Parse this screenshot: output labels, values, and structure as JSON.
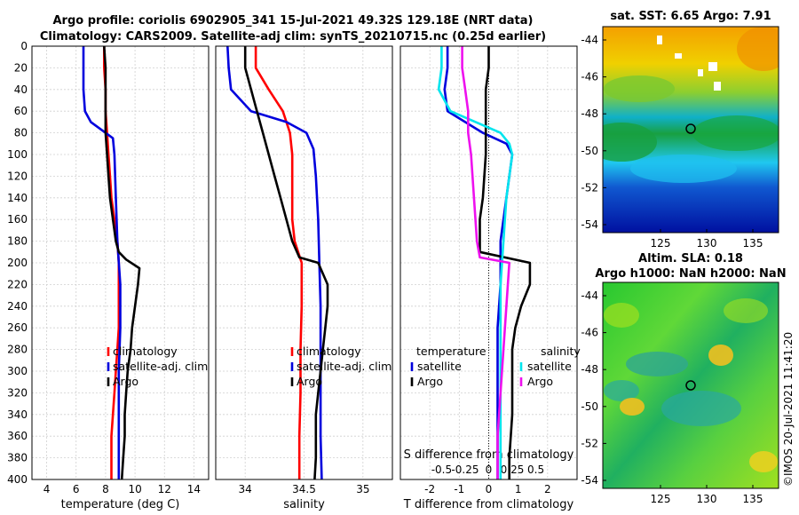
{
  "title_line1": "Argo profile: coriolis 6902905_341 15-Jul-2021 49.32S 129.18E (NRT data)",
  "title_line2": "Climatology: CARS2009. Satellite-adj clim: synTS_20210715.nc (0.25d earlier)",
  "watermark": "©IMOS 20-Jul-2021 11:41:20",
  "colors": {
    "climatology": "#ff0000",
    "satellite": "#0000dd",
    "argo": "#000000",
    "sat_salinity": "#00e5ee",
    "argo_salinity": "#ee11ee"
  },
  "depth_ticks": [
    "0",
    "20",
    "40",
    "60",
    "80",
    "100",
    "120",
    "140",
    "160",
    "180",
    "200",
    "220",
    "240",
    "260",
    "280",
    "300",
    "320",
    "340",
    "360",
    "380",
    "400"
  ],
  "chart_data": [
    {
      "type": "line",
      "name": "temperature",
      "xlabel": "temperature (deg C)",
      "ylabel": "depth",
      "xlim": [
        3,
        15
      ],
      "ylim": [
        400,
        0
      ],
      "xticks": [
        "4",
        "6",
        "8",
        "10",
        "12",
        "14"
      ],
      "xtick_values": [
        4,
        6,
        8,
        10,
        12,
        14
      ],
      "legend": [
        "climatology",
        "satellite-adj. clim",
        "Argo"
      ],
      "series": [
        {
          "name": "climatology",
          "color": "red",
          "points": [
            [
              7.9,
              0
            ],
            [
              7.9,
              20
            ],
            [
              8.0,
              40
            ],
            [
              8.0,
              60
            ],
            [
              8.1,
              80
            ],
            [
              8.2,
              100
            ],
            [
              8.3,
              120
            ],
            [
              8.4,
              140
            ],
            [
              8.6,
              160
            ],
            [
              8.8,
              180
            ],
            [
              8.9,
              200
            ],
            [
              8.9,
              220
            ],
            [
              8.9,
              240
            ],
            [
              8.9,
              260
            ],
            [
              8.8,
              280
            ],
            [
              8.7,
              300
            ],
            [
              8.6,
              320
            ],
            [
              8.5,
              340
            ],
            [
              8.4,
              360
            ],
            [
              8.4,
              380
            ],
            [
              8.4,
              400
            ]
          ]
        },
        {
          "name": "satellite-adj. clim",
          "color": "blue",
          "points": [
            [
              6.5,
              0
            ],
            [
              6.5,
              20
            ],
            [
              6.5,
              40
            ],
            [
              6.6,
              60
            ],
            [
              7.0,
              70
            ],
            [
              8.0,
              80
            ],
            [
              8.5,
              85
            ],
            [
              8.6,
              100
            ],
            [
              8.7,
              140
            ],
            [
              8.8,
              180
            ],
            [
              9.0,
              220
            ],
            [
              9.0,
              260
            ],
            [
              8.9,
              300
            ],
            [
              8.9,
              340
            ],
            [
              8.9,
              380
            ],
            [
              8.9,
              400
            ]
          ]
        },
        {
          "name": "Argo",
          "color": "black",
          "points": [
            [
              7.9,
              0
            ],
            [
              8.0,
              20
            ],
            [
              8.0,
              40
            ],
            [
              8.0,
              60
            ],
            [
              8.0,
              80
            ],
            [
              8.1,
              100
            ],
            [
              8.2,
              120
            ],
            [
              8.3,
              140
            ],
            [
              8.5,
              160
            ],
            [
              8.7,
              180
            ],
            [
              8.9,
              190
            ],
            [
              9.4,
              197
            ],
            [
              10.3,
              205
            ],
            [
              10.2,
              220
            ],
            [
              10.0,
              240
            ],
            [
              9.8,
              260
            ],
            [
              9.7,
              280
            ],
            [
              9.5,
              300
            ],
            [
              9.4,
              320
            ],
            [
              9.3,
              340
            ],
            [
              9.3,
              360
            ],
            [
              9.2,
              380
            ],
            [
              9.1,
              400
            ]
          ]
        }
      ]
    },
    {
      "type": "line",
      "name": "salinity",
      "xlabel": "salinity",
      "ylabel": "depth",
      "xlim": [
        33.75,
        35.25
      ],
      "ylim": [
        400,
        0
      ],
      "xticks": [
        "34",
        "34.5",
        "35"
      ],
      "xtick_values": [
        34,
        34.5,
        35
      ],
      "legend": [
        "climatology",
        "satellite-adj. clim",
        "Argo"
      ],
      "series": [
        {
          "name": "climatology",
          "color": "red",
          "points": [
            [
              34.09,
              0
            ],
            [
              34.09,
              20
            ],
            [
              34.2,
              40
            ],
            [
              34.32,
              60
            ],
            [
              34.38,
              80
            ],
            [
              34.4,
              100
            ],
            [
              34.4,
              140
            ],
            [
              34.4,
              160
            ],
            [
              34.42,
              180
            ],
            [
              34.48,
              200
            ],
            [
              34.48,
              240
            ],
            [
              34.47,
              280
            ],
            [
              34.47,
              320
            ],
            [
              34.46,
              360
            ],
            [
              34.46,
              400
            ]
          ]
        },
        {
          "name": "satellite-adj. clim",
          "color": "blue",
          "points": [
            [
              33.85,
              0
            ],
            [
              33.86,
              20
            ],
            [
              33.88,
              40
            ],
            [
              34.05,
              60
            ],
            [
              34.35,
              70
            ],
            [
              34.52,
              80
            ],
            [
              34.58,
              95
            ],
            [
              34.6,
              120
            ],
            [
              34.62,
              160
            ],
            [
              34.63,
              200
            ],
            [
              34.64,
              240
            ],
            [
              34.64,
              280
            ],
            [
              34.64,
              320
            ],
            [
              34.64,
              360
            ],
            [
              34.65,
              400
            ]
          ]
        },
        {
          "name": "Argo",
          "color": "black",
          "points": [
            [
              34.0,
              0
            ],
            [
              34.0,
              20
            ],
            [
              34.05,
              40
            ],
            [
              34.1,
              60
            ],
            [
              34.15,
              80
            ],
            [
              34.2,
              100
            ],
            [
              34.25,
              120
            ],
            [
              34.3,
              140
            ],
            [
              34.35,
              160
            ],
            [
              34.4,
              180
            ],
            [
              34.46,
              195
            ],
            [
              34.62,
              200
            ],
            [
              34.7,
              220
            ],
            [
              34.7,
              240
            ],
            [
              34.68,
              260
            ],
            [
              34.66,
              280
            ],
            [
              34.64,
              300
            ],
            [
              34.62,
              320
            ],
            [
              34.6,
              340
            ],
            [
              34.6,
              360
            ],
            [
              34.6,
              380
            ],
            [
              34.59,
              400
            ]
          ]
        }
      ]
    },
    {
      "type": "line",
      "name": "difference",
      "xlabel": "T difference from climatology",
      "top_axis_label": "S difference from climatology",
      "ylabel": "depth",
      "xlim": [
        -3,
        3
      ],
      "ylim": [
        400,
        0
      ],
      "xticks": [
        "-2",
        "-1",
        "0",
        "1",
        "2"
      ],
      "xtick_values": [
        -2,
        -1,
        0,
        1,
        2
      ],
      "s_ticks": [
        "-0.5",
        "-0.25",
        "0",
        "0.25",
        "0.5"
      ],
      "legend_temperature": [
        "temperature",
        "satellite",
        "Argo"
      ],
      "legend_salinity": [
        "salinity",
        "satellite",
        "Argo"
      ],
      "series": [
        {
          "name": "T satellite",
          "color": "blue",
          "points": [
            [
              -1.4,
              0
            ],
            [
              -1.4,
              20
            ],
            [
              -1.5,
              40
            ],
            [
              -1.4,
              60
            ],
            [
              -0.2,
              80
            ],
            [
              0.6,
              90
            ],
            [
              0.8,
              100
            ],
            [
              0.6,
              140
            ],
            [
              0.4,
              180
            ],
            [
              0.4,
              220
            ],
            [
              0.3,
              260
            ],
            [
              0.3,
              300
            ],
            [
              0.3,
              340
            ],
            [
              0.3,
              380
            ],
            [
              0.3,
              400
            ]
          ]
        },
        {
          "name": "T Argo",
          "color": "black",
          "points": [
            [
              0.0,
              0
            ],
            [
              0.0,
              20
            ],
            [
              -0.1,
              40
            ],
            [
              -0.1,
              60
            ],
            [
              -0.1,
              80
            ],
            [
              -0.1,
              100
            ],
            [
              -0.2,
              140
            ],
            [
              -0.3,
              160
            ],
            [
              -0.3,
              190
            ],
            [
              1.4,
              200
            ],
            [
              1.4,
              220
            ],
            [
              1.1,
              240
            ],
            [
              0.9,
              260
            ],
            [
              0.8,
              280
            ],
            [
              0.8,
              300
            ],
            [
              0.8,
              340
            ],
            [
              0.7,
              380
            ],
            [
              0.7,
              400
            ]
          ]
        },
        {
          "name": "S satellite",
          "color": "cyan",
          "points": [
            [
              -1.6,
              0
            ],
            [
              -1.6,
              20
            ],
            [
              -1.7,
              40
            ],
            [
              -1.3,
              60
            ],
            [
              0.4,
              80
            ],
            [
              0.7,
              90
            ],
            [
              0.8,
              100
            ],
            [
              0.6,
              140
            ],
            [
              0.5,
              180
            ],
            [
              0.4,
              220
            ],
            [
              0.4,
              260
            ],
            [
              0.4,
              300
            ],
            [
              0.4,
              340
            ],
            [
              0.4,
              380
            ],
            [
              0.4,
              400
            ]
          ]
        },
        {
          "name": "S Argo",
          "color": "magenta",
          "points": [
            [
              -0.9,
              0
            ],
            [
              -0.9,
              20
            ],
            [
              -0.8,
              40
            ],
            [
              -0.7,
              60
            ],
            [
              -0.7,
              80
            ],
            [
              -0.6,
              100
            ],
            [
              -0.5,
              140
            ],
            [
              -0.4,
              180
            ],
            [
              -0.3,
              195
            ],
            [
              0.7,
              200
            ],
            [
              0.6,
              240
            ],
            [
              0.5,
              280
            ],
            [
              0.4,
              320
            ],
            [
              0.3,
              360
            ],
            [
              0.3,
              400
            ]
          ]
        }
      ]
    }
  ],
  "maps": [
    {
      "title": "sat. SST: 6.65 Argo: 7.91",
      "title2": "",
      "yticks": [
        "-44",
        "-46",
        "-48",
        "-50",
        "-52",
        "-54"
      ],
      "xticks": [
        "125",
        "130",
        "135"
      ],
      "marker": "Argo position 49.32S 129.18E"
    },
    {
      "title": "Altim. SLA: 0.18",
      "title2": "Argo h1000: NaN h2000: NaN",
      "yticks": [
        "-44",
        "-46",
        "-48",
        "-50",
        "-52",
        "-54"
      ],
      "xticks": [
        "125",
        "130",
        "135"
      ],
      "marker": "Argo position 49.32S 129.18E"
    }
  ]
}
